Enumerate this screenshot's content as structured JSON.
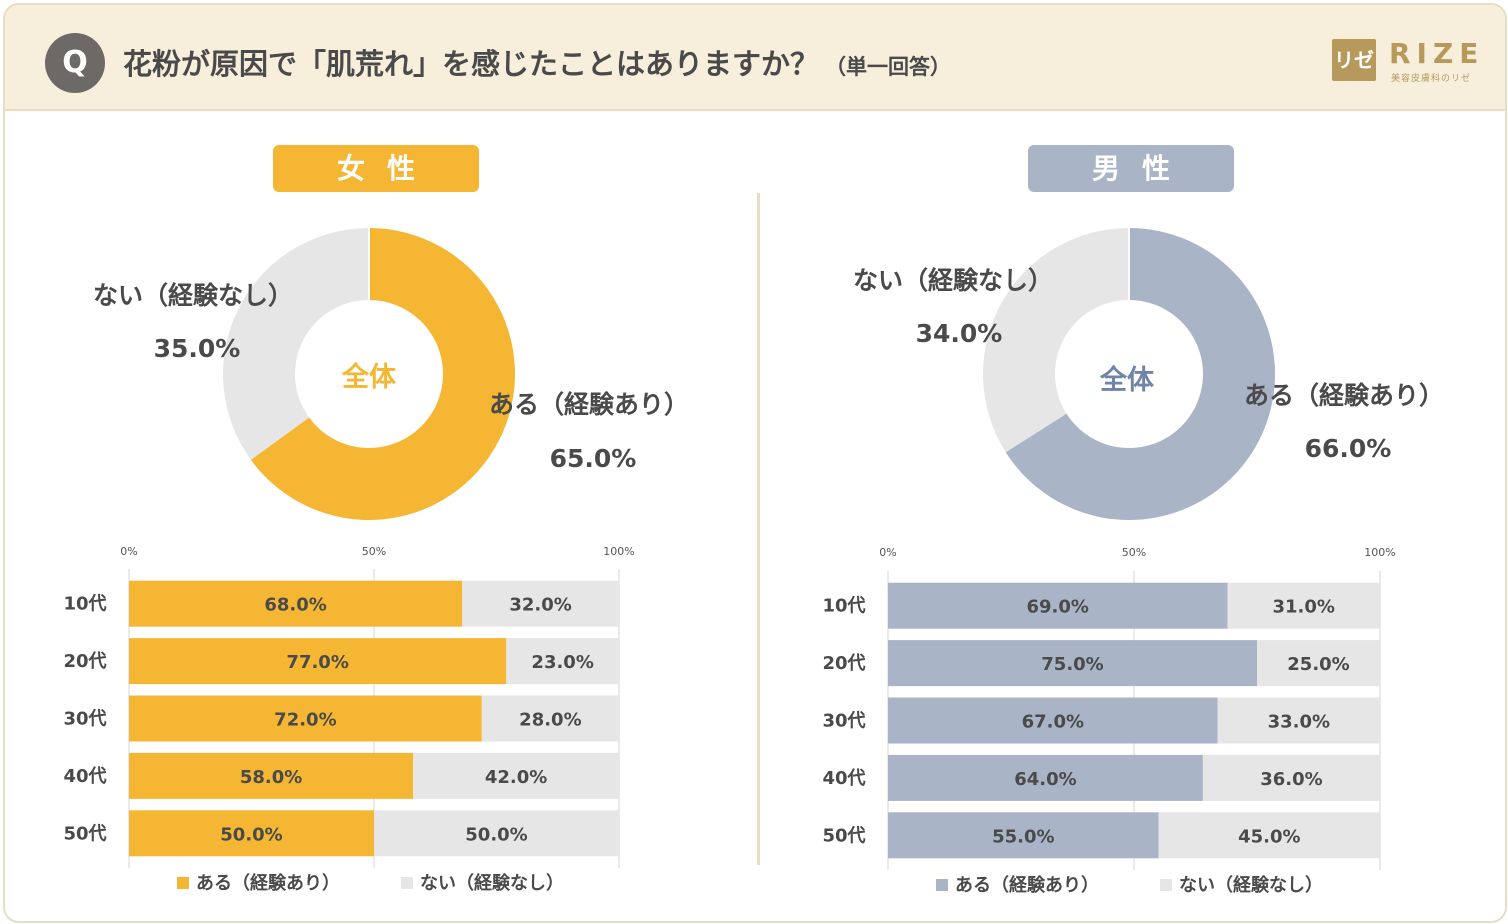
{
  "header": {
    "q_badge": "Q",
    "question": "花粉が原因で「肌荒れ」を感じたことはありますか？",
    "note": "（単一回答）",
    "logo_mark": "リゼ",
    "logo_text": "RIZE",
    "logo_sub": "美容皮膚科のリゼ"
  },
  "colors": {
    "female": "#f5b634",
    "male": "#a9b4c6",
    "no": "#e6e6e6",
    "female_center": "#f5b634",
    "male_center": "#6f84a6"
  },
  "female": {
    "title": "女性",
    "donut_center": "全体",
    "yes_label": "ある（経験あり）",
    "yes_value": "65.0%",
    "no_label": "ない（経験なし）",
    "no_value": "35.0%"
  },
  "male": {
    "title": "男性",
    "donut_center": "全体",
    "yes_label": "ある（経験あり）",
    "yes_value": "66.0%",
    "no_label": "ない（経験なし）",
    "no_value": "34.0%"
  },
  "chart_data": [
    {
      "type": "pie",
      "title": "女性 全体",
      "categories": [
        "ある（経験あり）",
        "ない（経験なし）"
      ],
      "values": [
        65.0,
        35.0
      ]
    },
    {
      "type": "bar",
      "title": "女性 年代別",
      "orientation": "horizontal-stacked",
      "categories": [
        "10代",
        "20代",
        "30代",
        "40代",
        "50代"
      ],
      "series": [
        {
          "name": "ある（経験あり）",
          "values": [
            68.0,
            77.0,
            72.0,
            58.0,
            50.0
          ]
        },
        {
          "name": "ない（経験なし）",
          "values": [
            32.0,
            23.0,
            28.0,
            42.0,
            50.0
          ]
        }
      ],
      "ticks": [
        "0%",
        "50%",
        "100%"
      ],
      "xlim": [
        0,
        100
      ]
    },
    {
      "type": "pie",
      "title": "男性 全体",
      "categories": [
        "ある（経験あり）",
        "ない（経験なし）"
      ],
      "values": [
        66.0,
        34.0
      ]
    },
    {
      "type": "bar",
      "title": "男性 年代別",
      "orientation": "horizontal-stacked",
      "categories": [
        "10代",
        "20代",
        "30代",
        "40代",
        "50代"
      ],
      "series": [
        {
          "name": "ある（経験あり）",
          "values": [
            69.0,
            75.0,
            67.0,
            64.0,
            55.0
          ]
        },
        {
          "name": "ない（経験なし）",
          "values": [
            31.0,
            25.0,
            33.0,
            36.0,
            45.0
          ]
        }
      ],
      "ticks": [
        "0%",
        "50%",
        "100%"
      ],
      "xlim": [
        0,
        100
      ]
    }
  ]
}
